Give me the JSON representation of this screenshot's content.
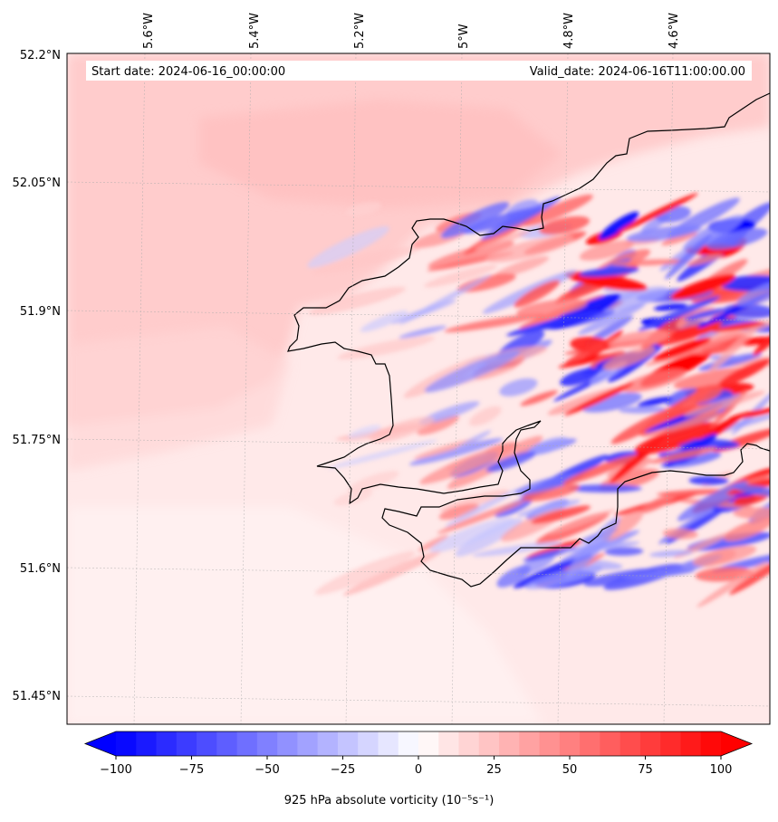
{
  "map": {
    "start_label": "Start date: 2024-06-16_00:00:00",
    "valid_label": "Valid_date: 2024-06-16T11:00:00.00",
    "lon_ticks": [
      "5.6°W",
      "5.4°W",
      "5.2°W",
      "5°W",
      "4.8°W",
      "4.6°W"
    ],
    "lat_ticks": [
      "52.2°N",
      "52.05°N",
      "51.9°N",
      "51.75°N",
      "51.6°N",
      "51.45°N"
    ],
    "colors": {
      "positive": "#ff0000",
      "negative": "#0000ff",
      "zero": "#ffffff",
      "coastline": "#000000"
    }
  },
  "colorbar": {
    "title": "925 hPa absolute vorticity (10⁻⁵s⁻¹)",
    "tick_labels": [
      "−100",
      "−75",
      "−50",
      "−25",
      "0",
      "25",
      "50",
      "75",
      "100"
    ],
    "min": -100,
    "max": 100,
    "levels": 30
  }
}
